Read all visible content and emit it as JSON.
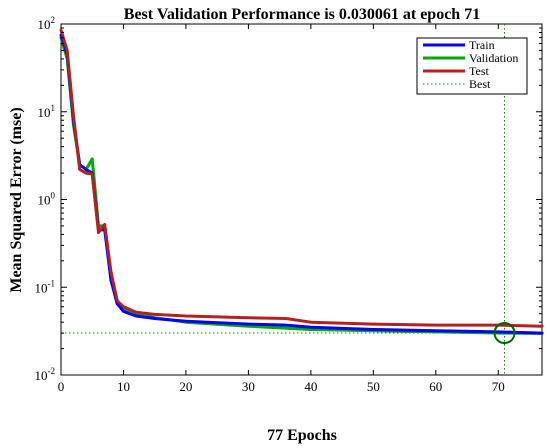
{
  "chart_data": {
    "type": "line",
    "title": "Best Validation Performance is 0.030061 at epoch 71",
    "xlabel": "77 Epochs",
    "ylabel": "Mean Squared Error  (mse)",
    "xlim": [
      0,
      77
    ],
    "ylim": [
      0.01,
      100
    ],
    "yscale": "log",
    "grid": false,
    "legend_position": "top-right",
    "x_ticks": [
      0,
      10,
      20,
      30,
      40,
      50,
      60,
      70
    ],
    "y_ticks": [
      {
        "value": 0.01,
        "base": "10",
        "exp": "-2"
      },
      {
        "value": 0.1,
        "base": "10",
        "exp": "-1"
      },
      {
        "value": 1,
        "base": "10",
        "exp": "0"
      },
      {
        "value": 10,
        "base": "10",
        "exp": "1"
      },
      {
        "value": 100,
        "base": "10",
        "exp": "2"
      }
    ],
    "series": [
      {
        "name": "Train",
        "color": "#0000ff",
        "style": "solid",
        "points": [
          [
            0,
            75
          ],
          [
            1,
            45
          ],
          [
            2,
            8
          ],
          [
            3,
            2.5
          ],
          [
            4,
            2.2
          ],
          [
            5,
            2.0
          ],
          [
            6,
            0.45
          ],
          [
            7,
            0.45
          ],
          [
            8,
            0.12
          ],
          [
            9,
            0.065
          ],
          [
            10,
            0.053
          ],
          [
            12,
            0.047
          ],
          [
            15,
            0.044
          ],
          [
            20,
            0.041
          ],
          [
            30,
            0.038
          ],
          [
            36,
            0.037
          ],
          [
            40,
            0.035
          ],
          [
            50,
            0.033
          ],
          [
            60,
            0.032
          ],
          [
            70,
            0.031
          ],
          [
            77,
            0.03
          ]
        ]
      },
      {
        "name": "Validation",
        "color": "#00aa00",
        "style": "solid",
        "points": [
          [
            0,
            70
          ],
          [
            1,
            40
          ],
          [
            2,
            7
          ],
          [
            3,
            2.5
          ],
          [
            4,
            2.2
          ],
          [
            5,
            2.9
          ],
          [
            6,
            0.5
          ],
          [
            7,
            0.5
          ],
          [
            8,
            0.13
          ],
          [
            9,
            0.065
          ],
          [
            10,
            0.057
          ],
          [
            12,
            0.05
          ],
          [
            15,
            0.045
          ],
          [
            20,
            0.04
          ],
          [
            30,
            0.036
          ],
          [
            40,
            0.033
          ],
          [
            50,
            0.032
          ],
          [
            60,
            0.031
          ],
          [
            71,
            0.030061
          ],
          [
            77,
            0.0298
          ]
        ]
      },
      {
        "name": "Test",
        "color": "#b22222",
        "style": "solid",
        "points": [
          [
            0,
            85
          ],
          [
            1,
            50
          ],
          [
            2,
            9
          ],
          [
            3,
            2.2
          ],
          [
            4,
            2.0
          ],
          [
            5,
            1.95
          ],
          [
            6,
            0.42
          ],
          [
            7,
            0.52
          ],
          [
            8,
            0.15
          ],
          [
            9,
            0.07
          ],
          [
            10,
            0.06
          ],
          [
            12,
            0.052
          ],
          [
            15,
            0.049
          ],
          [
            20,
            0.047
          ],
          [
            30,
            0.045
          ],
          [
            36,
            0.044
          ],
          [
            40,
            0.04
          ],
          [
            50,
            0.038
          ],
          [
            60,
            0.037
          ],
          [
            70,
            0.037
          ],
          [
            77,
            0.036
          ]
        ]
      },
      {
        "name": "Best",
        "color": "#008800",
        "style": "dotted"
      }
    ],
    "best": {
      "epoch": 71,
      "value": 0.030061
    }
  }
}
